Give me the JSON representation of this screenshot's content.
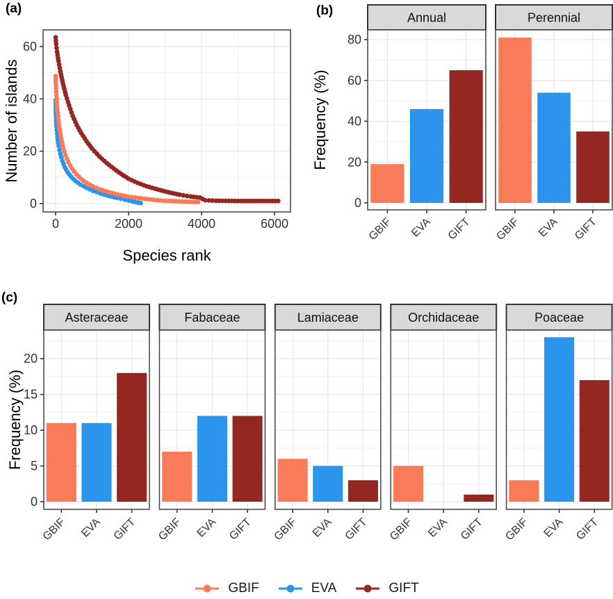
{
  "figure": {
    "panel_labels": {
      "a": "(a)",
      "b": "(b)",
      "c": "(c)"
    },
    "background": "#FFFFFF"
  },
  "style": {
    "strip_fill": "#D9D9D9",
    "strip_border": "#333333",
    "panel_border": "#4D4D4D",
    "grid_major": "#E3E3E3",
    "grid_minor": "#F1F1F1",
    "tick_color": "#333333",
    "tick_label_color": "#333333",
    "title_color": "#000000",
    "series_colors": {
      "GBIF": "#F97B57",
      "EVA": "#2B95EE",
      "GIFT": "#952723"
    }
  },
  "legend": {
    "items": [
      {
        "label": "GBIF",
        "color": "#F97B57"
      },
      {
        "label": "EVA",
        "color": "#2B95EE"
      },
      {
        "label": "GIFT",
        "color": "#952723"
      }
    ]
  },
  "chart_data": [
    {
      "id": "panel-a",
      "type": "scatter",
      "xlabel": "Species rank",
      "ylabel": "Number of islands",
      "xticks": [
        0,
        2000,
        4000,
        6000
      ],
      "yticks": [
        0,
        20,
        40,
        60
      ],
      "xlim": [
        -340,
        6440
      ],
      "ylim": [
        -3,
        66.5
      ],
      "grid": true,
      "legend_position": "bottom",
      "series": [
        {
          "name": "GBIF",
          "color": "#F97B57",
          "points": [
            [
              1,
              48.7
            ],
            [
              6,
              46.5
            ],
            [
              14,
              44
            ],
            [
              28,
              40
            ],
            [
              48,
              36
            ],
            [
              75,
              32
            ],
            [
              108,
              28.5
            ],
            [
              150,
              25
            ],
            [
              205,
              21.5
            ],
            [
              270,
              18.5
            ],
            [
              350,
              15.8
            ],
            [
              450,
              13.3
            ],
            [
              570,
              11.2
            ],
            [
              700,
              9.4
            ],
            [
              850,
              7.9
            ],
            [
              1020,
              6.6
            ],
            [
              1220,
              5.4
            ],
            [
              1450,
              4.4
            ],
            [
              1700,
              3.5
            ],
            [
              1980,
              2.7
            ],
            [
              2280,
              2.1
            ],
            [
              2600,
              1.6
            ],
            [
              2950,
              1.1
            ],
            [
              3300,
              0.9
            ],
            [
              3650,
              0.7
            ],
            [
              3900,
              0.6
            ]
          ]
        },
        {
          "name": "EVA",
          "color": "#2B95EE",
          "points": [
            [
              1,
              39.5
            ],
            [
              10,
              34
            ],
            [
              25,
              29.5
            ],
            [
              50,
              25.5
            ],
            [
              85,
              22
            ],
            [
              130,
              19
            ],
            [
              185,
              16.3
            ],
            [
              250,
              14
            ],
            [
              330,
              12
            ],
            [
              430,
              10.2
            ],
            [
              550,
              8.6
            ],
            [
              690,
              7.2
            ],
            [
              850,
              6
            ],
            [
              1030,
              4.9
            ],
            [
              1230,
              3.9
            ],
            [
              1450,
              3
            ],
            [
              1680,
              2.2
            ],
            [
              1900,
              1.5
            ],
            [
              2100,
              0.9
            ],
            [
              2250,
              0.4
            ],
            [
              2330,
              0.2
            ]
          ]
        },
        {
          "name": "GIFT",
          "color": "#952723",
          "points": [
            [
              1,
              63.5
            ],
            [
              15,
              61
            ],
            [
              40,
              58
            ],
            [
              80,
              54.5
            ],
            [
              130,
              50.5
            ],
            [
              200,
              46
            ],
            [
              280,
              41.5
            ],
            [
              370,
              37.5
            ],
            [
              470,
              33.5
            ],
            [
              580,
              30
            ],
            [
              700,
              27
            ],
            [
              850,
              23.8
            ],
            [
              1000,
              21
            ],
            [
              1200,
              18
            ],
            [
              1400,
              15.5
            ],
            [
              1600,
              13.3
            ],
            [
              1800,
              11.3
            ],
            [
              2000,
              9.5
            ],
            [
              2250,
              7.9
            ],
            [
              2500,
              6.6
            ],
            [
              2800,
              5.4
            ],
            [
              3100,
              4.3
            ],
            [
              3400,
              3.4
            ],
            [
              3700,
              2.7
            ],
            [
              3950,
              2.3
            ],
            [
              4100,
              1.3
            ],
            [
              4400,
              1.1
            ],
            [
              5000,
              1
            ],
            [
              6100,
              1
            ]
          ]
        }
      ]
    },
    {
      "id": "panel-b",
      "type": "bar",
      "ylabel": "Frequency (%)",
      "yticks": [
        0,
        20,
        40,
        60,
        80
      ],
      "ylim": [
        0,
        85
      ],
      "categories": [
        "GBIF",
        "EVA",
        "GIFT"
      ],
      "facets": [
        {
          "label": "Annual",
          "values": [
            19,
            46,
            65
          ]
        },
        {
          "label": "Perennial",
          "values": [
            81,
            54,
            35
          ]
        }
      ]
    },
    {
      "id": "panel-c",
      "type": "bar",
      "ylabel": "Frequency (%)",
      "yticks": [
        0,
        5,
        10,
        15,
        20
      ],
      "ylim": [
        0,
        24
      ],
      "categories": [
        "GBIF",
        "EVA",
        "GIFT"
      ],
      "facets": [
        {
          "label": "Asteraceae",
          "values": [
            11,
            11,
            18
          ]
        },
        {
          "label": "Fabaceae",
          "values": [
            7,
            12,
            12
          ]
        },
        {
          "label": "Lamiaceae",
          "values": [
            6,
            5,
            3
          ]
        },
        {
          "label": "Orchidaceae",
          "values": [
            5,
            0,
            1
          ]
        },
        {
          "label": "Poaceae",
          "values": [
            3,
            23,
            17
          ]
        }
      ]
    }
  ]
}
